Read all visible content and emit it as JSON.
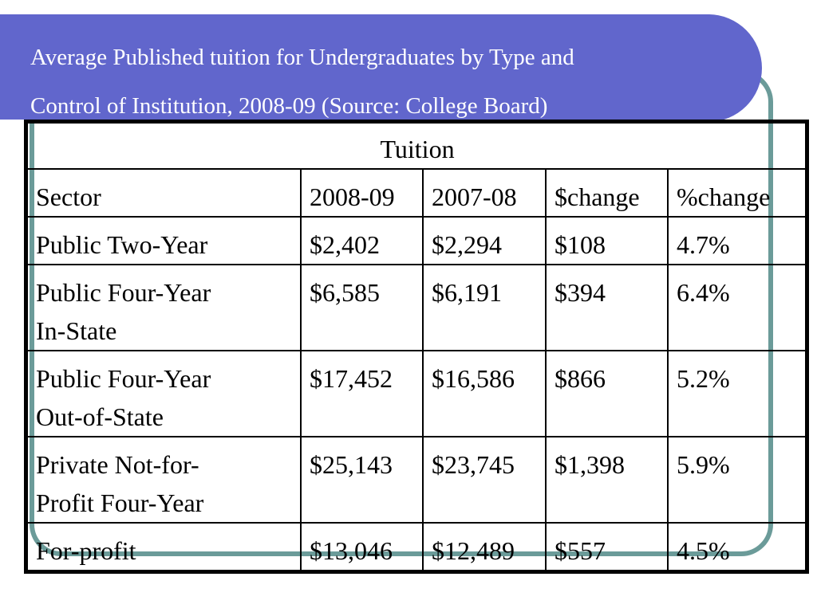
{
  "title": {
    "line1": "Average Published tuition for Undergraduates by Type and",
    "line2": "Control of Institution, 2008-09 (Source: College Board)"
  },
  "table": {
    "group_header": "Tuition",
    "columns": [
      "Sector",
      "2008-09",
      "2007-08",
      "$change",
      "%change"
    ],
    "rows": [
      {
        "sector_line1": "Public Two-Year",
        "sector_line2": "",
        "y2008": "$2,402",
        "y2007": "$2,294",
        "dchange": "$108",
        "pchange": "4.7%"
      },
      {
        "sector_line1": "Public Four-Year",
        "sector_line2": "In-State",
        "y2008": "$6,585",
        "y2007": "$6,191",
        "dchange": "$394",
        "pchange": "6.4%"
      },
      {
        "sector_line1": "Public Four-Year",
        "sector_line2": "Out-of-State",
        "y2008": "$17,452",
        "y2007": "$16,586",
        "dchange": "$866",
        "pchange": "5.2%"
      },
      {
        "sector_line1": "Private Not-for-",
        "sector_line2": "Profit Four-Year",
        "y2008": "$25,143",
        "y2007": "$23,745",
        "dchange": "$1,398",
        "pchange": "5.9%"
      },
      {
        "sector_line1": "For-profit",
        "sector_line2": "",
        "y2008": "$13,046",
        "y2007": "$12,489",
        "dchange": "$557",
        "pchange": "4.5%"
      }
    ]
  },
  "colors": {
    "banner": "#6166cc",
    "frame": "#6b9b99",
    "text": "#000000",
    "title_text": "#ffffff"
  }
}
